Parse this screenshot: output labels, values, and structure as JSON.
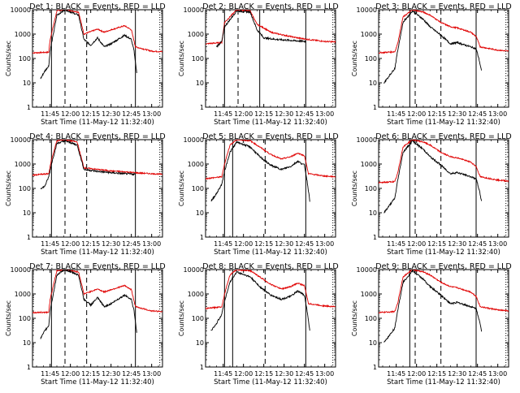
{
  "chart_data": {
    "type": "line",
    "layout": "3x3 grid",
    "shared": {
      "xlabel": "Start Time (11-May-12 11:32:40)",
      "ylabel": "Counts/sec",
      "x_ticks": [
        "11:45",
        "12:00",
        "12:15",
        "12:30",
        "12:45",
        "13:00"
      ],
      "y_scale": "log",
      "ylim": [
        1,
        10000
      ],
      "y_ticks": [
        "1",
        "10",
        "100",
        "1000",
        "10000"
      ],
      "series_colors": {
        "Events": "#000000",
        "LLD": "#e00000"
      }
    },
    "panels": [
      {
        "title": "Det 1: BLACK = Events, RED = LLD",
        "detector": 1,
        "pattern": "A"
      },
      {
        "title": "Det 2: BLACK = Events, RED = LLD",
        "detector": 2,
        "pattern": "B"
      },
      {
        "title": "Det 3: BLACK = Events, RED = LLD",
        "detector": 3,
        "pattern": "C"
      },
      {
        "title": "Det 4: BLACK = Events, RED = LLD",
        "detector": 4,
        "pattern": "D"
      },
      {
        "title": "Det 5: BLACK = Events, RED = LLD",
        "detector": 5,
        "pattern": "E"
      },
      {
        "title": "Det 6: BLACK = Events, RED = LLD",
        "detector": 6,
        "pattern": "C"
      },
      {
        "title": "Det 7: BLACK = Events, RED = LLD",
        "detector": 7,
        "pattern": "A"
      },
      {
        "title": "Det 8: BLACK = Events, RED = LLD",
        "detector": 8,
        "pattern": "E"
      },
      {
        "title": "Det 9: BLACK = Events, RED = LLD",
        "detector": 9,
        "pattern": "C"
      }
    ],
    "patterns": {
      "A": {
        "vlines": [
          {
            "t": "11:46",
            "style": "solid"
          },
          {
            "t": "11:56",
            "style": "dashed"
          },
          {
            "t": "12:12",
            "style": "dashed"
          },
          {
            "t": "12:48",
            "style": "solid"
          }
        ],
        "red": [
          [
            "11:32",
            170
          ],
          [
            "11:44",
            180
          ],
          [
            "11:45",
            600
          ],
          [
            "11:50",
            9000
          ],
          [
            "11:56",
            10000
          ],
          [
            "12:06",
            8000
          ],
          [
            "12:10",
            1000
          ],
          [
            "12:20",
            1600
          ],
          [
            "12:25",
            1200
          ],
          [
            "12:30",
            1500
          ],
          [
            "12:40",
            2200
          ],
          [
            "12:45",
            1500
          ],
          [
            "12:48",
            300
          ],
          [
            "13:00",
            200
          ],
          [
            "13:08",
            190
          ]
        ],
        "black": [
          [
            "11:38",
            15
          ],
          [
            "11:41",
            30
          ],
          [
            "11:44",
            50
          ],
          [
            "11:45",
            200
          ],
          [
            "11:50",
            6000
          ],
          [
            "11:56",
            10000
          ],
          [
            "12:06",
            6000
          ],
          [
            "12:10",
            600
          ],
          [
            "12:15",
            350
          ],
          [
            "12:20",
            700
          ],
          [
            "12:25",
            300
          ],
          [
            "12:30",
            400
          ],
          [
            "12:40",
            900
          ],
          [
            "12:45",
            600
          ],
          [
            "12:47",
            200
          ],
          [
            "12:49",
            25
          ]
        ]
      },
      "B": {
        "vlines": [
          {
            "t": "11:46",
            "style": "solid"
          },
          {
            "t": "11:56",
            "style": "dashed"
          },
          {
            "t": "12:12",
            "style": "solid"
          },
          {
            "t": "12:46",
            "style": "solid"
          }
        ],
        "red": [
          [
            "11:32",
            400
          ],
          [
            "11:44",
            450
          ],
          [
            "11:46",
            3000
          ],
          [
            "11:55",
            10000
          ],
          [
            "12:05",
            9000
          ],
          [
            "12:10",
            2500
          ],
          [
            "12:15",
            1800
          ],
          [
            "12:20",
            1200
          ],
          [
            "12:30",
            900
          ],
          [
            "12:40",
            700
          ],
          [
            "12:48",
            600
          ],
          [
            "13:00",
            500
          ],
          [
            "13:08",
            480
          ]
        ],
        "black": [
          [
            "11:40",
            300
          ],
          [
            "11:44",
            500
          ],
          [
            "11:46",
            2000
          ],
          [
            "11:55",
            9000
          ],
          [
            "12:05",
            8000
          ],
          [
            "12:10",
            1500
          ],
          [
            "12:15",
            700
          ],
          [
            "12:25",
            600
          ],
          [
            "12:35",
            550
          ],
          [
            "12:46",
            500
          ]
        ]
      },
      "C": {
        "vlines": [
          {
            "t": "11:55",
            "style": "solid"
          },
          {
            "t": "11:59",
            "style": "dashed"
          },
          {
            "t": "12:18",
            "style": "dashed"
          },
          {
            "t": "12:44",
            "style": "solid"
          }
        ],
        "red": [
          [
            "11:32",
            170
          ],
          [
            "11:44",
            190
          ],
          [
            "11:46",
            400
          ],
          [
            "11:50",
            5000
          ],
          [
            "11:57",
            10000
          ],
          [
            "12:05",
            8000
          ],
          [
            "12:10",
            6000
          ],
          [
            "12:18",
            3000
          ],
          [
            "12:25",
            2000
          ],
          [
            "12:30",
            1800
          ],
          [
            "12:40",
            1200
          ],
          [
            "12:44",
            800
          ],
          [
            "12:47",
            300
          ],
          [
            "13:00",
            220
          ],
          [
            "13:08",
            200
          ]
        ],
        "black": [
          [
            "11:36",
            10
          ],
          [
            "11:40",
            20
          ],
          [
            "11:44",
            40
          ],
          [
            "11:46",
            200
          ],
          [
            "11:50",
            3000
          ],
          [
            "11:57",
            9000
          ],
          [
            "12:05",
            4000
          ],
          [
            "12:10",
            2000
          ],
          [
            "12:18",
            900
          ],
          [
            "12:25",
            400
          ],
          [
            "12:30",
            450
          ],
          [
            "12:40",
            300
          ],
          [
            "12:44",
            250
          ],
          [
            "12:46",
            100
          ],
          [
            "12:48",
            30
          ]
        ]
      },
      "D": {
        "vlines": [
          {
            "t": "11:46",
            "style": "solid"
          },
          {
            "t": "11:56",
            "style": "dashed"
          },
          {
            "t": "12:12",
            "style": "dashed"
          },
          {
            "t": "12:48",
            "style": "solid"
          }
        ],
        "red": [
          [
            "11:32",
            350
          ],
          [
            "11:44",
            400
          ],
          [
            "11:46",
            1500
          ],
          [
            "11:50",
            9000
          ],
          [
            "11:56",
            10000
          ],
          [
            "12:05",
            8000
          ],
          [
            "12:10",
            700
          ],
          [
            "12:20",
            600
          ],
          [
            "12:30",
            520
          ],
          [
            "12:40",
            480
          ],
          [
            "12:50",
            430
          ],
          [
            "13:00",
            400
          ],
          [
            "13:08",
            380
          ]
        ],
        "black": [
          [
            "11:38",
            100
          ],
          [
            "11:41",
            120
          ],
          [
            "11:44",
            300
          ],
          [
            "11:46",
            1000
          ],
          [
            "11:50",
            7000
          ],
          [
            "11:56",
            9000
          ],
          [
            "12:05",
            6000
          ],
          [
            "12:10",
            600
          ],
          [
            "12:20",
            500
          ],
          [
            "12:30",
            440
          ],
          [
            "12:40",
            400
          ],
          [
            "12:48",
            380
          ]
        ]
      },
      "E": {
        "vlines": [
          {
            "t": "11:46",
            "style": "solid"
          },
          {
            "t": "11:52",
            "style": "solid"
          },
          {
            "t": "12:16",
            "style": "dashed"
          },
          {
            "t": "12:46",
            "style": "solid"
          }
        ],
        "red": [
          [
            "11:32",
            250
          ],
          [
            "11:44",
            300
          ],
          [
            "11:46",
            1000
          ],
          [
            "11:50",
            6000
          ],
          [
            "11:55",
            10000
          ],
          [
            "12:05",
            9000
          ],
          [
            "12:12",
            5000
          ],
          [
            "12:20",
            2500
          ],
          [
            "12:28",
            1600
          ],
          [
            "12:35",
            2000
          ],
          [
            "12:40",
            2800
          ],
          [
            "12:45",
            2200
          ],
          [
            "12:48",
            400
          ],
          [
            "13:00",
            320
          ],
          [
            "13:08",
            300
          ]
        ],
        "black": [
          [
            "11:36",
            30
          ],
          [
            "11:40",
            60
          ],
          [
            "11:44",
            150
          ],
          [
            "11:46",
            500
          ],
          [
            "11:50",
            3000
          ],
          [
            "11:55",
            8000
          ],
          [
            "12:05",
            5000
          ],
          [
            "12:12",
            2000
          ],
          [
            "12:20",
            900
          ],
          [
            "12:28",
            600
          ],
          [
            "12:35",
            800
          ],
          [
            "12:40",
            1300
          ],
          [
            "12:45",
            900
          ],
          [
            "12:47",
            200
          ],
          [
            "12:49",
            30
          ]
        ]
      }
    }
  }
}
